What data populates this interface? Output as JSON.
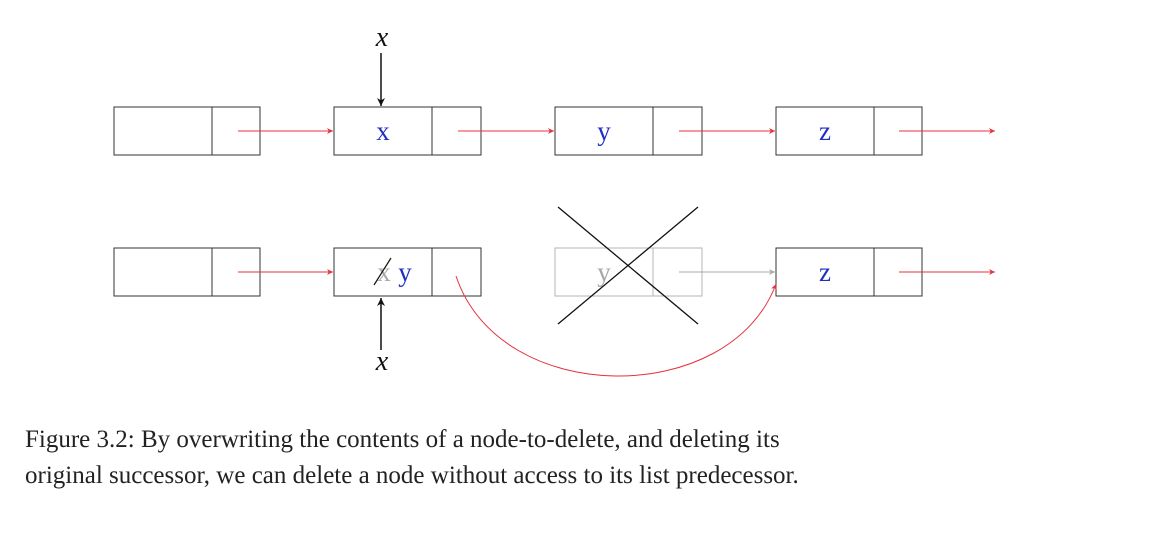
{
  "diagram": {
    "top_row": {
      "node_values": [
        "",
        "x",
        "y",
        "z"
      ],
      "pointer_label": "x"
    },
    "bottom_row": {
      "node_values": [
        "",
        "x",
        "y",
        "z"
      ],
      "overwritten_value": "y",
      "pointer_label": "x"
    }
  },
  "caption": {
    "line1": "Figure 3.2: By overwriting the contents of a node-to-delete, and deleting its",
    "line2": "original successor, we can delete a node without access to its list predecessor."
  },
  "colors": {
    "arrow": "#e5323c",
    "value": "#1f2fc4",
    "faded": "#a8a8a8",
    "box": "#333333"
  }
}
